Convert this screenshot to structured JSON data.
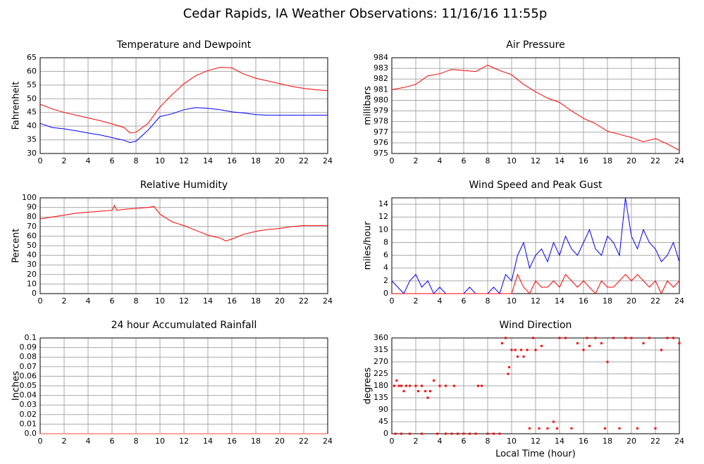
{
  "title": "Cedar Rapids, IA Weather Observations: 11/16/16 11:55p",
  "chart_data": [
    {
      "type": "line",
      "title": "Temperature and Dewpoint",
      "ylabel": "Fahrenheit",
      "grid": true,
      "xlim": [
        0,
        24
      ],
      "xticks": [
        0,
        2,
        4,
        6,
        8,
        10,
        12,
        14,
        16,
        18,
        20,
        22,
        24
      ],
      "ylim": [
        30,
        65
      ],
      "yticks": [
        30,
        35,
        40,
        45,
        50,
        55,
        60,
        65
      ],
      "x": [
        0,
        1,
        2,
        3,
        4,
        5,
        6,
        7,
        7.5,
        8,
        9,
        10,
        11,
        12,
        13,
        14,
        15,
        16,
        17,
        18,
        19,
        20,
        21,
        22,
        23,
        24
      ],
      "series": [
        {
          "color": "#ff0000",
          "values": [
            48,
            46.3,
            45,
            44,
            43,
            42,
            40.8,
            39.5,
            37.5,
            37.8,
            41,
            47,
            51.5,
            55.5,
            58.5,
            60.3,
            61.5,
            61.3,
            59,
            57.5,
            56.5,
            55.5,
            54.5,
            53.8,
            53.3,
            53
          ]
        },
        {
          "color": "#0000ff",
          "values": [
            41,
            39.5,
            39,
            38.3,
            37.5,
            36.8,
            35.8,
            34.8,
            34,
            34.5,
            38.5,
            43.5,
            44.5,
            46,
            46.8,
            46.5,
            46,
            45.2,
            44.8,
            44.2,
            44,
            44,
            44,
            44,
            44,
            44
          ]
        }
      ]
    },
    {
      "type": "line",
      "title": "Air Pressure",
      "ylabel": "millibars",
      "grid": true,
      "xlim": [
        0,
        24
      ],
      "xticks": [
        0,
        2,
        4,
        6,
        8,
        10,
        12,
        14,
        16,
        18,
        20,
        22,
        24
      ],
      "ylim": [
        975,
        984
      ],
      "yticks": [
        975,
        976,
        977,
        978,
        979,
        980,
        981,
        982,
        983,
        984
      ],
      "x": [
        0,
        1,
        2,
        3,
        4,
        5,
        6,
        7,
        7.5,
        8,
        9,
        10,
        11,
        12,
        13,
        14,
        15,
        16,
        17,
        18,
        19,
        20,
        21,
        22,
        23,
        24
      ],
      "series": [
        {
          "color": "#ff0000",
          "values": [
            981,
            981.2,
            981.5,
            982.3,
            982.5,
            982.9,
            982.8,
            982.7,
            983,
            983.3,
            982.8,
            982.4,
            981.5,
            980.8,
            980.2,
            979.8,
            979,
            978.3,
            977.8,
            977.1,
            976.8,
            976.5,
            976.1,
            976.4,
            975.9,
            975.3
          ]
        }
      ]
    },
    {
      "type": "line",
      "title": "Relative Humidity",
      "ylabel": "Percent",
      "grid": true,
      "xlim": [
        0,
        24
      ],
      "xticks": [
        0,
        2,
        4,
        6,
        8,
        10,
        12,
        14,
        16,
        18,
        20,
        22,
        24
      ],
      "ylim": [
        0,
        100
      ],
      "yticks": [
        0,
        10,
        20,
        30,
        40,
        50,
        60,
        70,
        80,
        90,
        100
      ],
      "x": [
        0,
        1,
        2,
        3,
        4,
        5,
        6,
        6.2,
        6.4,
        7,
        8,
        9,
        9.5,
        10,
        11,
        12,
        13,
        14,
        15,
        15.5,
        16,
        17,
        18,
        19,
        20,
        21,
        22,
        23,
        24
      ],
      "series": [
        {
          "color": "#ff0000",
          "values": [
            78,
            80,
            82,
            84,
            85,
            86,
            87,
            92,
            87,
            88,
            89,
            90,
            91,
            83,
            75,
            71,
            66,
            61,
            58,
            55,
            57,
            62,
            65,
            67,
            68,
            70,
            71,
            71,
            71
          ]
        }
      ]
    },
    {
      "type": "line",
      "title": "Wind Speed and Peak Gust",
      "ylabel": "miles/hour",
      "grid": true,
      "xlim": [
        0,
        24
      ],
      "xticks": [
        0,
        2,
        4,
        6,
        8,
        10,
        12,
        14,
        16,
        18,
        20,
        22,
        24
      ],
      "ylim": [
        0,
        15
      ],
      "yticks": [
        0,
        2,
        4,
        6,
        8,
        10,
        12,
        14
      ],
      "x": [
        0,
        0.5,
        1,
        1.5,
        2,
        2.5,
        3,
        3.5,
        4,
        4.5,
        5,
        5.5,
        6,
        6.5,
        7,
        7.5,
        8,
        8.5,
        9,
        9.5,
        10,
        10.5,
        11,
        11.5,
        12,
        12.5,
        13,
        13.5,
        14,
        14.5,
        15,
        15.5,
        16,
        16.5,
        17,
        17.5,
        18,
        18.5,
        19,
        19.5,
        20,
        20.5,
        21,
        21.5,
        22,
        22.5,
        23,
        23.5,
        24
      ],
      "series": [
        {
          "color": "#0000ff",
          "values": [
            2,
            1,
            0,
            2,
            3,
            1,
            2,
            0,
            1,
            0,
            0,
            0,
            0,
            1,
            0,
            0,
            0,
            1,
            0,
            3,
            2,
            6,
            8,
            4,
            6,
            7,
            5,
            8,
            6,
            9,
            7,
            6,
            8,
            10,
            7,
            6,
            9,
            8,
            6,
            15,
            9,
            7,
            10,
            8,
            7,
            5,
            6,
            8,
            5
          ]
        },
        {
          "color": "#ff0000",
          "values": [
            0,
            0,
            0,
            0,
            0,
            0,
            0,
            0,
            0,
            0,
            0,
            0,
            0,
            0,
            0,
            0,
            0,
            0,
            0,
            0,
            0,
            3,
            1,
            0,
            2,
            1,
            1,
            2,
            1,
            3,
            2,
            1,
            2,
            1,
            0,
            2,
            1,
            1,
            2,
            3,
            2,
            3,
            2,
            1,
            2,
            0,
            2,
            1,
            2
          ]
        }
      ]
    },
    {
      "type": "line",
      "title": "24 hour Accumulated Rainfall",
      "ylabel": "Inches",
      "grid": true,
      "xlim": [
        0,
        24
      ],
      "xticks": [
        0,
        2,
        4,
        6,
        8,
        10,
        12,
        14,
        16,
        18,
        20,
        22,
        24
      ],
      "ylim": [
        0,
        0.1
      ],
      "yticks": [
        {
          "value": 0,
          "label": "0.0"
        },
        0.01,
        0.02,
        0.03,
        0.04,
        0.05,
        0.06,
        0.07,
        0.08,
        0.09,
        0.1
      ],
      "x": [
        0,
        24
      ],
      "series": [
        {
          "color": "#ff4444",
          "values": [
            0,
            0
          ]
        }
      ]
    },
    {
      "type": "scatter",
      "title": "Wind Direction",
      "ylabel": "degrees",
      "xlabel": "Local Time (hour)",
      "grid": true,
      "xlim": [
        0,
        24
      ],
      "xticks": [
        0,
        2,
        4,
        6,
        8,
        10,
        12,
        14,
        16,
        18,
        20,
        22,
        24
      ],
      "ylim": [
        0,
        360
      ],
      "yticks": [
        0,
        45,
        90,
        135,
        180,
        225,
        270,
        315,
        360
      ],
      "color": "#ff0000",
      "x": [
        0.2,
        0.4,
        0.6,
        0.8,
        1,
        1.2,
        1.5,
        2,
        2.2,
        2.5,
        2.8,
        3,
        3.2,
        3.5,
        4,
        4.5,
        5.2,
        0.3,
        0.8,
        1.5,
        2.5,
        3.8,
        4.5,
        5,
        5.5,
        6,
        6.5,
        7,
        7.2,
        7.5,
        8,
        8.5,
        9,
        9.2,
        9.5,
        9.7,
        9.8,
        10,
        10.3,
        10.5,
        10.8,
        11,
        11.3,
        11.5,
        11.8,
        12,
        12.3,
        12.5,
        13,
        13.5,
        13.8,
        14,
        14.5,
        15,
        15.5,
        16,
        16.3,
        16.5,
        17,
        17.5,
        17.8,
        18,
        18.5,
        19,
        19.5,
        20,
        20.5,
        21,
        21.5,
        22,
        22.5,
        23,
        23.5,
        24
      ],
      "values": [
        180,
        200,
        180,
        180,
        160,
        180,
        180,
        180,
        160,
        180,
        160,
        135,
        160,
        200,
        180,
        180,
        180,
        0,
        0,
        0,
        0,
        0,
        0,
        0,
        0,
        0,
        0,
        0,
        180,
        180,
        0,
        0,
        0,
        340,
        360,
        225,
        250,
        315,
        315,
        290,
        315,
        290,
        315,
        20,
        360,
        315,
        20,
        330,
        20,
        45,
        20,
        360,
        360,
        20,
        340,
        315,
        360,
        330,
        360,
        340,
        20,
        270,
        360,
        20,
        360,
        360,
        20,
        340,
        360,
        20,
        315,
        360,
        360,
        340
      ]
    }
  ]
}
